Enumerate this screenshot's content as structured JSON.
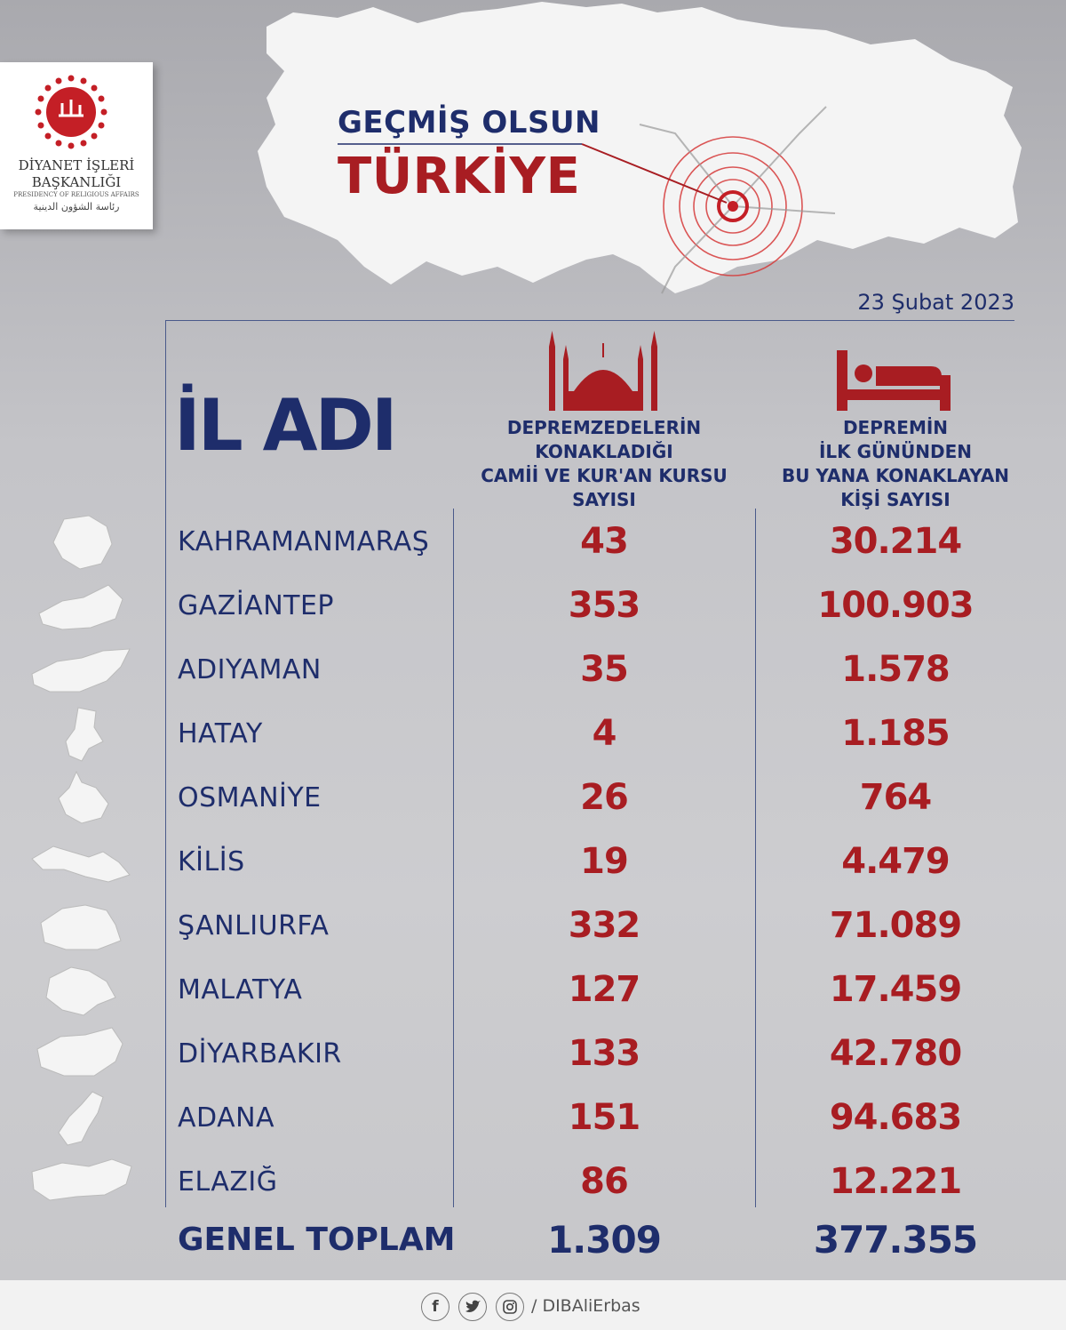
{
  "logo": {
    "line1": "DİYANET İŞLERİ",
    "line2": "BAŞKANLIĞI",
    "line3": "PRESIDENCY OF RELIGIOUS AFFAIRS",
    "line4": "رئاسة الشؤون الدينية"
  },
  "header": {
    "title_line1": "GEÇMİŞ OLSUN",
    "title_line2": "TÜRKİYE",
    "date": "23 Şubat 2023"
  },
  "table": {
    "col1_header": "İL ADI",
    "col2_header": [
      "DEPREMZEDELERİN",
      "KONAKLADIĞI",
      "CAMİİ VE KUR'AN KURSU",
      "SAYISI"
    ],
    "col3_header": [
      "DEPREMİN",
      "İLK GÜNÜNDEN",
      "BU YANA KONAKLAYAN",
      "KİŞİ SAYISI"
    ],
    "rows": [
      {
        "province": "KAHRAMANMARAŞ",
        "mosques": "43",
        "people": "30.214"
      },
      {
        "province": "GAZİANTEP",
        "mosques": "353",
        "people": "100.903"
      },
      {
        "province": "ADIYAMAN",
        "mosques": "35",
        "people": "1.578"
      },
      {
        "province": "HATAY",
        "mosques": "4",
        "people": "1.185"
      },
      {
        "province": "OSMANİYE",
        "mosques": "26",
        "people": "764"
      },
      {
        "province": "KİLİS",
        "mosques": "19",
        "people": "4.479"
      },
      {
        "province": "ŞANLIURFA",
        "mosques": "332",
        "people": "71.089"
      },
      {
        "province": "MALATYA",
        "mosques": "127",
        "people": "17.459"
      },
      {
        "province": "DİYARBAKIR",
        "mosques": "133",
        "people": "42.780"
      },
      {
        "province": "ADANA",
        "mosques": "151",
        "people": "94.683"
      },
      {
        "province": "ELAZIĞ",
        "mosques": "86",
        "people": "12.221"
      }
    ],
    "total": {
      "label": "GENEL TOPLAM",
      "mosques": "1.309",
      "people": "377.355"
    }
  },
  "footer": {
    "icons": [
      "facebook-icon",
      "twitter-icon",
      "instagram-icon"
    ],
    "handle": "/ DIBAliErbas"
  },
  "colors": {
    "navy": "#1e2d6b",
    "red": "#a81d22",
    "background": "#c4c4c8"
  }
}
